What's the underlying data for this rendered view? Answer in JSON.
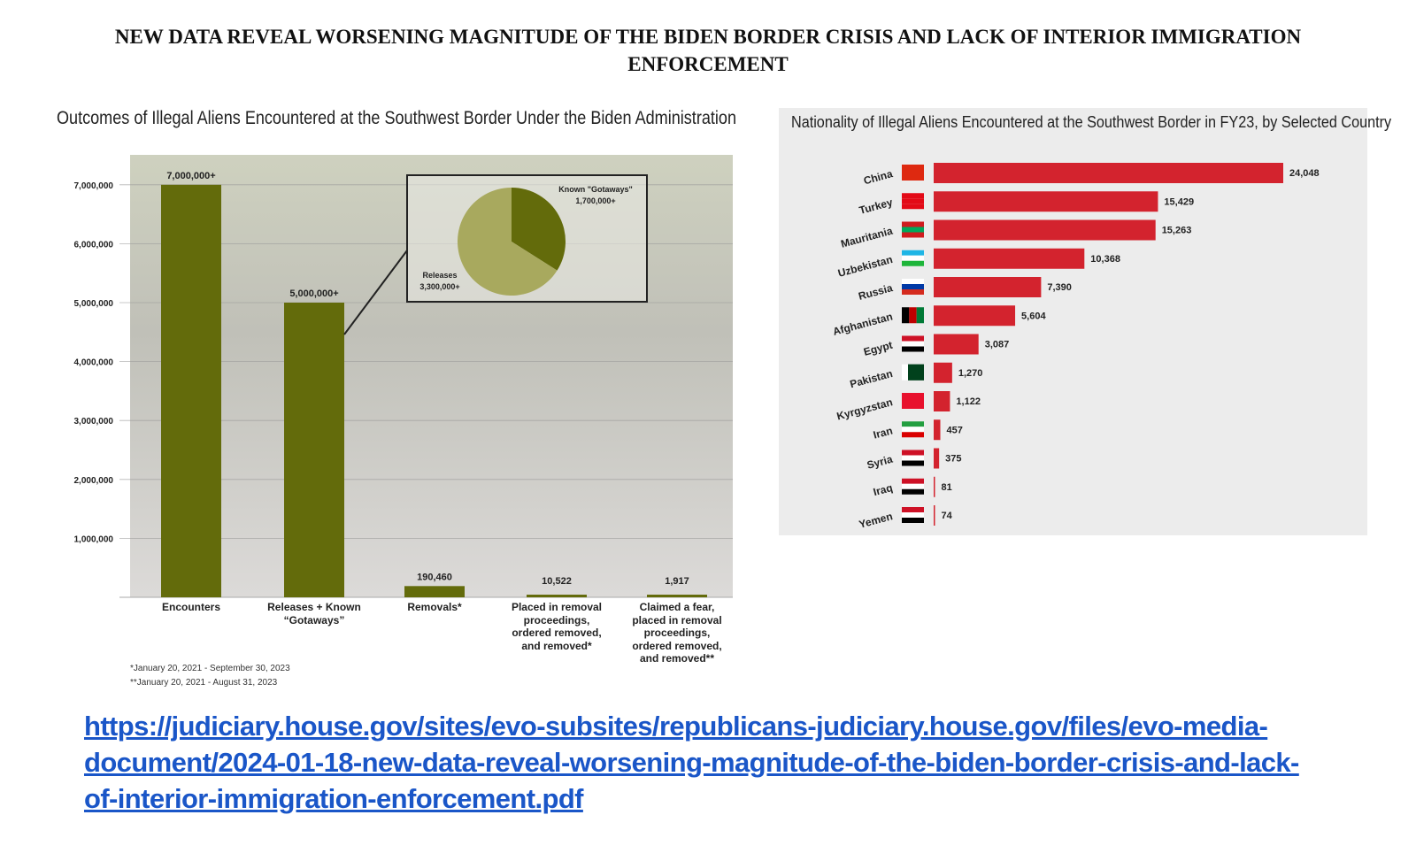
{
  "document": {
    "title": "NEW DATA REVEAL WORSENING MAGNITUDE OF THE BIDEN BORDER CRISIS AND LACK OF INTERIOR IMMIGRATION ENFORCEMENT",
    "link": "https://judiciary.house.gov/sites/evo-subsites/republicans-judiciary.house.gov/files/evo-media-document/2024-01-18-new-data-reveal-worsening-magnitude-of-the-biden-border-crisis-and-lack-of-interior-immigration-enforcement.pdf"
  },
  "chart_data": [
    {
      "type": "bar",
      "title": "Outcomes of Illegal Aliens Encountered at the Southwest Border Under the Biden Administration",
      "categories": [
        "Encounters",
        "Releases + Known “Gotaways”",
        "Removals*",
        "Placed in removal proceedings, ordered removed, and removed*",
        "Claimed a fear, placed in removal proceedings, ordered removed, and removed**"
      ],
      "values": [
        7000000,
        5000000,
        190460,
        10522,
        1917
      ],
      "data_labels": [
        "7,000,000+",
        "5,000,000+",
        "190,460",
        "10,522",
        "1,917"
      ],
      "yticks": [
        "1,000,000",
        "2,000,000",
        "3,000,000",
        "4,000,000",
        "5,000,000",
        "6,000,000",
        "7,000,000"
      ],
      "ylim": [
        0,
        7500000
      ],
      "grid": true,
      "bar_color": "#636b0b",
      "footnotes": [
        "*January 20, 2021 - September 30, 2023",
        "**January 20, 2021 - August 31, 2023"
      ],
      "inset": {
        "type": "pie",
        "slices": [
          {
            "label": "Known \"Gotaways\"",
            "value": 1700000,
            "value_label": "1,700,000+",
            "color": "#636b0b"
          },
          {
            "label": "Releases",
            "value": 3300000,
            "value_label": "3,300,000+",
            "color": "#a8a95e"
          }
        ]
      }
    },
    {
      "type": "bar",
      "orientation": "horizontal",
      "title": "Nationality of Illegal Aliens Encountered at the Southwest Border in FY23, by Selected Country",
      "categories": [
        "China",
        "Turkey",
        "Mauritania",
        "Uzbekistan",
        "Russia",
        "Afghanistan",
        "Egypt",
        "Pakistan",
        "Kyrgyzstan",
        "Iran",
        "Syria",
        "Iraq",
        "Yemen"
      ],
      "values": [
        24048,
        15429,
        15263,
        10368,
        7390,
        5604,
        3087,
        1270,
        1122,
        457,
        375,
        81,
        74
      ],
      "data_labels": [
        "24,048",
        "15,429",
        "15,263",
        "10,368",
        "7,390",
        "5,604",
        "3,087",
        "1,270",
        "1,122",
        "457",
        "375",
        "81",
        "74"
      ],
      "bar_color": "#d3232e",
      "background": "#ececec"
    }
  ]
}
